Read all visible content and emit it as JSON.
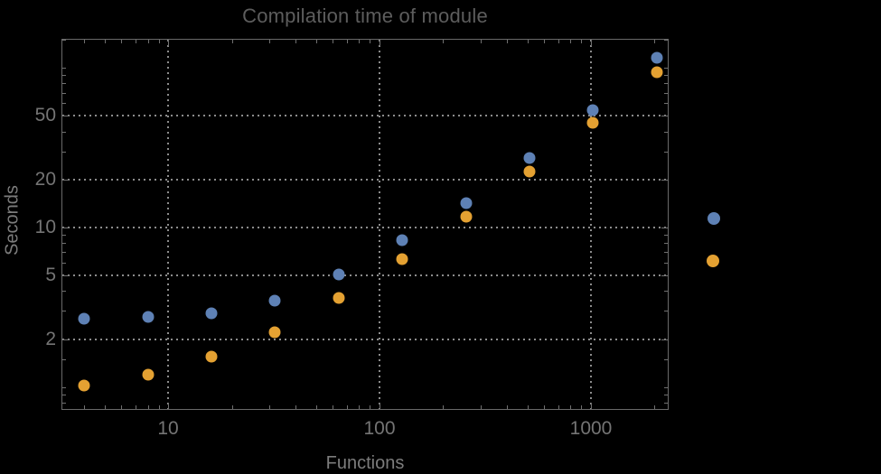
{
  "chart_data": {
    "type": "scatter",
    "title": "Compilation time of module",
    "xlabel": "Functions",
    "ylabel": "Seconds",
    "x_scale": "log",
    "y_scale": "log",
    "xlim": [
      3.12,
      2335
    ],
    "ylim": [
      0.72,
      152
    ],
    "grid": "dotted lines at major ticks, both axes",
    "x_ticks": {
      "major": [
        10,
        100,
        1000
      ],
      "major_labels": [
        "10",
        "100",
        "1000"
      ],
      "minor": [
        4,
        5,
        6,
        7,
        8,
        9,
        20,
        30,
        40,
        50,
        60,
        70,
        80,
        90,
        200,
        300,
        400,
        500,
        600,
        700,
        800,
        900,
        2000
      ]
    },
    "y_ticks": {
      "major": [
        2,
        5,
        10,
        20,
        50
      ],
      "major_labels": [
        "2",
        "5",
        "10",
        "20",
        "50"
      ],
      "minor": [
        0.8,
        0.9,
        1,
        1.5,
        3,
        4,
        6,
        7,
        8,
        9,
        30,
        40,
        60,
        70,
        80,
        90,
        100,
        150
      ]
    },
    "series": [
      {
        "id": "series-1-blue",
        "marker": "disk",
        "color": "#5e81b5",
        "x": [
          4,
          8,
          16,
          32,
          64,
          128,
          256,
          512,
          1024,
          2048
        ],
        "y": [
          2.7,
          2.75,
          2.9,
          3.5,
          5.1,
          8.3,
          14.2,
          27.3,
          54.5,
          115
        ]
      },
      {
        "id": "series-2-orange",
        "marker": "disk",
        "color": "#e4a132",
        "x": [
          4,
          8,
          16,
          32,
          64,
          128,
          256,
          512,
          1024,
          2048
        ],
        "y": [
          1.03,
          1.2,
          1.55,
          2.2,
          3.6,
          6.3,
          11.7,
          22.5,
          45.5,
          94
        ]
      }
    ],
    "legend": {
      "position": "outside-right-middle",
      "entries": [
        {
          "marker_color": "#5e81b5"
        },
        {
          "marker_color": "#e4a132"
        }
      ]
    }
  },
  "colors": {
    "background": "#000000",
    "frame": "#696969",
    "gridline": "#8c8c8c",
    "tick_label": "#747474",
    "axis_label": "#7c7c7c",
    "title": "#5d5d5d"
  }
}
